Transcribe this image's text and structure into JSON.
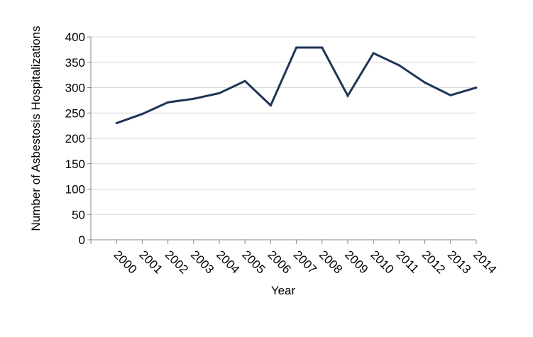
{
  "chart_data": {
    "type": "line",
    "title": "",
    "xlabel": "Year",
    "ylabel": "Number of Asbestosis Hospitalizations",
    "ylim": [
      0,
      400
    ],
    "yticks": [
      "0",
      "50",
      "100",
      "150",
      "200",
      "250",
      "300",
      "350",
      "400"
    ],
    "categories": [
      "2000",
      "2001",
      "2002",
      "2003",
      "2004",
      "2005",
      "2006",
      "2007",
      "2008",
      "2009",
      "2010",
      "2011",
      "2012",
      "2013",
      "2014"
    ],
    "series": [
      {
        "name": "",
        "color": "#1f3557",
        "values": [
          230,
          248,
          271,
          278,
          289,
          313,
          265,
          379,
          379,
          284,
          368,
          344,
          310,
          285,
          300
        ]
      }
    ],
    "grid": true,
    "gridColor": "#d9d9d9",
    "axisColor": "#888888",
    "legend": "none"
  }
}
